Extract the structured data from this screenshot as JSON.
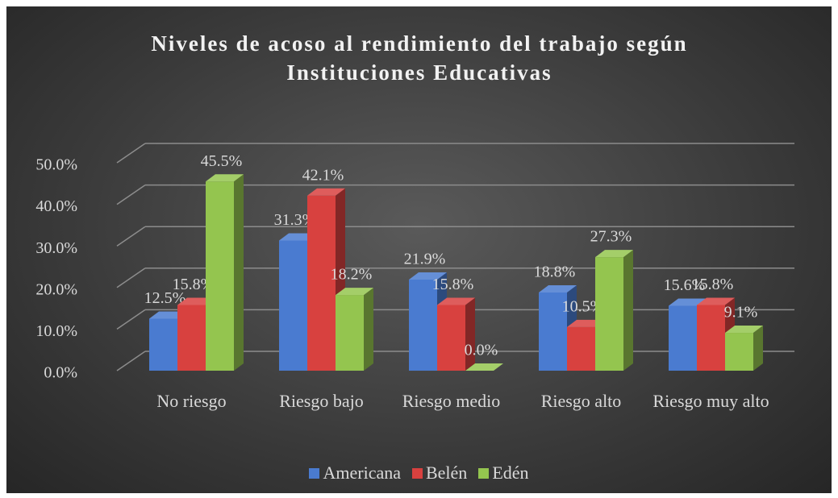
{
  "chart_data": {
    "type": "bar3d",
    "title": "Niveles de acoso al rendimiento del trabajo según Instituciones Educativas",
    "categories": [
      "No riesgo",
      "Riesgo bajo",
      "Riesgo medio",
      "Riesgo alto",
      "Riesgo muy alto"
    ],
    "series": [
      {
        "name": "Americana",
        "color": "#4a7bd0",
        "values": [
          12.5,
          31.3,
          21.9,
          18.8,
          15.6
        ],
        "value_labels": [
          "12.5%",
          "31.3%",
          "21.9%",
          "18.8%",
          "15.6%"
        ]
      },
      {
        "name": "Belén",
        "color": "#d8413f",
        "values": [
          15.8,
          42.1,
          15.8,
          10.5,
          15.8
        ],
        "value_labels": [
          "15.8%",
          "42.1%",
          "15.8%",
          "10.5%",
          "15.8%"
        ]
      },
      {
        "name": "Edén",
        "color": "#94c54f",
        "values": [
          45.5,
          18.2,
          0.0,
          27.3,
          9.1
        ],
        "value_labels": [
          "45.5%",
          "18.2%",
          "0.0%",
          "27.3%",
          "9.1%"
        ]
      }
    ],
    "ylim": [
      0,
      50
    ],
    "yticks": [
      {
        "value": 0,
        "label": "0.0%"
      },
      {
        "value": 10,
        "label": "10.0%"
      },
      {
        "value": 20,
        "label": "20.0%"
      },
      {
        "value": 30,
        "label": "30.0%"
      },
      {
        "value": 40,
        "label": "40.0%"
      },
      {
        "value": 50,
        "label": "50.0%"
      }
    ],
    "grid": true,
    "legend": "bottom"
  }
}
